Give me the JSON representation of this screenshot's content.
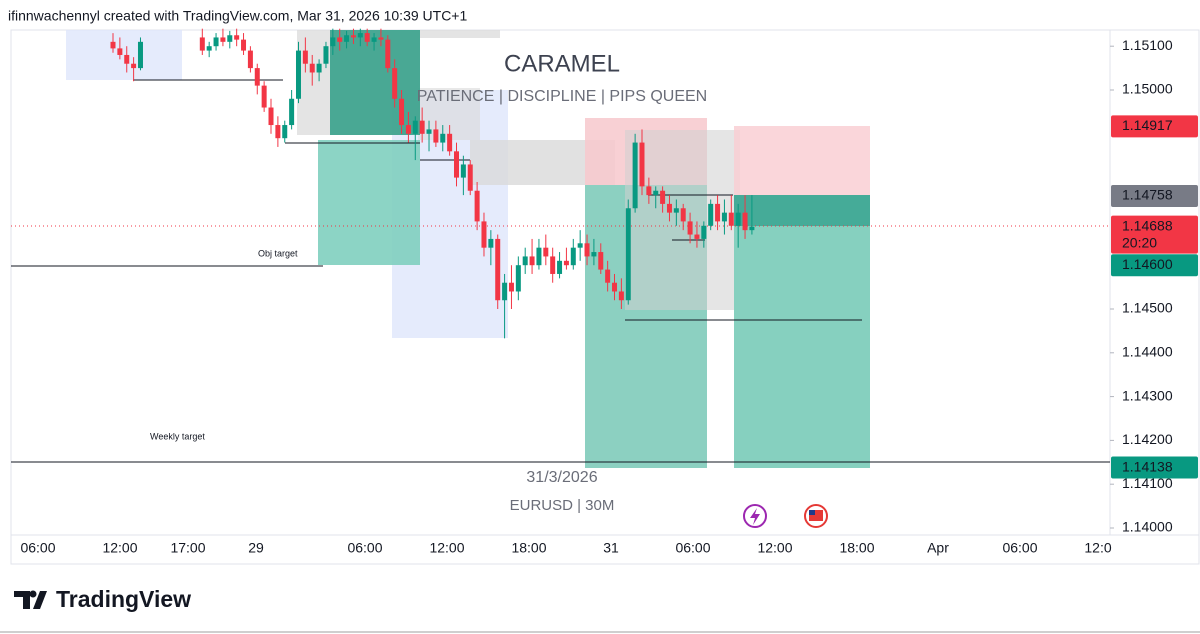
{
  "header": {
    "text": "ifinnwachennyl created with TradingView.com, Mar 31, 2026 10:39 UTC+1"
  },
  "chart": {
    "watermark": {
      "title": "CARAMEL",
      "subtitle": "PATIENCE | DISCIPLINE | PIPS QUEEN",
      "date": "31/3/2026",
      "symbol": "EURUSD | 30M"
    },
    "annotations": [
      "Obj target",
      "Weekly target"
    ],
    "up_color": "#089981",
    "down_color": "#f23645",
    "ylim": [
      1.13984,
      1.15137
    ],
    "yticks": [
      {
        "value": 1.151,
        "label": "1.15100"
      },
      {
        "value": 1.15,
        "label": "1.15000"
      },
      {
        "value": 1.145,
        "label": "1.14500"
      },
      {
        "value": 1.144,
        "label": "1.14400"
      },
      {
        "value": 1.143,
        "label": "1.14300"
      },
      {
        "value": 1.142,
        "label": "1.14200"
      },
      {
        "value": 1.141,
        "label": "1.14100"
      },
      {
        "value": 1.14,
        "label": "1.14000"
      }
    ],
    "price_labels": [
      {
        "value": 1.14917,
        "label": "1.14917",
        "color": "#f23645"
      },
      {
        "value": 1.14758,
        "label": "1.14758",
        "color": "#787b86"
      },
      {
        "value": 1.14688,
        "label": "1.14688",
        "color": "#f23645"
      },
      {
        "value": 1.146,
        "label": "1.14600",
        "color": "#089981"
      },
      {
        "value": 1.14138,
        "label": "1.14138",
        "color": "#089981"
      }
    ],
    "countdown": "20:20",
    "x_labels": [
      "06:00",
      "12:00",
      "17:00",
      "29",
      "06:00",
      "12:00",
      "18:00",
      "31",
      "06:00",
      "12:00",
      "18:00",
      "Apr",
      "06:00",
      "12:0"
    ],
    "candles": [
      [
        1.1511,
        1.1513,
        1.15085,
        1.15095
      ],
      [
        1.15095,
        1.1512,
        1.1507,
        1.1508
      ],
      [
        1.1508,
        1.151,
        1.1504,
        1.1506
      ],
      [
        1.1506,
        1.15075,
        1.1502,
        1.1505
      ],
      [
        1.1505,
        1.1512,
        1.15045,
        1.1511
      ],
      null,
      null,
      null,
      null,
      null,
      null,
      null,
      null,
      [
        1.1512,
        1.1514,
        1.1508,
        1.1509
      ],
      [
        1.1509,
        1.1511,
        1.15075,
        1.151
      ],
      [
        1.151,
        1.1513,
        1.1509,
        1.1512
      ],
      [
        1.1512,
        1.1514,
        1.151,
        1.1511
      ],
      [
        1.1511,
        1.15135,
        1.15095,
        1.15125
      ],
      [
        1.15125,
        1.1514,
        1.151,
        1.15115
      ],
      [
        1.15115,
        1.1513,
        1.1508,
        1.1509
      ],
      [
        1.1509,
        1.151,
        1.1504,
        1.1505
      ],
      [
        1.1505,
        1.1506,
        1.1499,
        1.1501
      ],
      [
        1.1501,
        1.1502,
        1.1495,
        1.1496
      ],
      [
        1.1496,
        1.1498,
        1.149,
        1.1492
      ],
      [
        1.1492,
        1.1494,
        1.1487,
        1.1489
      ],
      [
        1.1489,
        1.1493,
        1.1488,
        1.1492
      ],
      [
        1.1492,
        1.15,
        1.1491,
        1.1498
      ],
      [
        1.1498,
        1.1511,
        1.1497,
        1.1509
      ],
      [
        1.1509,
        1.1512,
        1.1504,
        1.1506
      ],
      [
        1.1506,
        1.1508,
        1.1501,
        1.1504
      ],
      [
        1.1504,
        1.1507,
        1.1502,
        1.1506
      ],
      [
        1.1506,
        1.1511,
        1.1505,
        1.151
      ],
      [
        1.151,
        1.1514,
        1.1508,
        1.1512
      ],
      [
        1.1512,
        1.1514,
        1.1509,
        1.1511
      ],
      [
        1.1511,
        1.15135,
        1.15095,
        1.15125
      ],
      [
        1.15125,
        1.1514,
        1.15105,
        1.1512
      ],
      [
        1.1512,
        1.1514,
        1.151,
        1.1513
      ],
      [
        1.1513,
        1.1514,
        1.151,
        1.1511
      ],
      [
        1.1511,
        1.1513,
        1.1509,
        1.1512
      ],
      [
        1.1512,
        1.1514,
        1.151,
        1.15115
      ],
      [
        1.15115,
        1.15125,
        1.1504,
        1.1505
      ],
      [
        1.1505,
        1.1507,
        1.1496,
        1.1498
      ],
      [
        1.1498,
        1.15,
        1.149,
        1.1492
      ],
      [
        1.1492,
        1.1495,
        1.1488,
        1.149
      ],
      [
        1.149,
        1.1494,
        1.1484,
        1.1493
      ],
      [
        1.1493,
        1.1496,
        1.1488,
        1.149
      ],
      [
        1.149,
        1.1493,
        1.1486,
        1.1491
      ],
      [
        1.1491,
        1.1493,
        1.1487,
        1.1488
      ],
      [
        1.1488,
        1.1492,
        1.1486,
        1.149
      ],
      [
        1.149,
        1.1492,
        1.1485,
        1.1486
      ],
      [
        1.1486,
        1.1488,
        1.1478,
        1.148
      ],
      [
        1.148,
        1.1485,
        1.1476,
        1.1483
      ],
      [
        1.1483,
        1.1484,
        1.1476,
        1.1477
      ],
      [
        1.1477,
        1.1479,
        1.1468,
        1.147
      ],
      [
        1.147,
        1.1472,
        1.1462,
        1.1464
      ],
      [
        1.1464,
        1.1468,
        1.146,
        1.1466
      ],
      [
        1.1466,
        1.1467,
        1.145,
        1.1452
      ],
      [
        1.1452,
        1.1458,
        1.14433,
        1.1456
      ],
      [
        1.1456,
        1.146,
        1.145,
        1.1454
      ],
      [
        1.1454,
        1.1462,
        1.1452,
        1.146
      ],
      [
        1.146,
        1.1464,
        1.1458,
        1.1462
      ],
      [
        1.1462,
        1.1466,
        1.1458,
        1.146
      ],
      [
        1.146,
        1.1466,
        1.1459,
        1.1464
      ],
      [
        1.1464,
        1.1467,
        1.146,
        1.1462
      ],
      [
        1.1462,
        1.1464,
        1.1456,
        1.1458
      ],
      [
        1.1458,
        1.1463,
        1.1457,
        1.1461
      ],
      [
        1.1461,
        1.1464,
        1.1459,
        1.146
      ],
      [
        1.146,
        1.1466,
        1.1459,
        1.1464
      ],
      [
        1.1464,
        1.1468,
        1.1461,
        1.1465
      ],
      [
        1.1465,
        1.1467,
        1.146,
        1.1462
      ],
      [
        1.1462,
        1.1466,
        1.146,
        1.1463
      ],
      [
        1.1463,
        1.1465,
        1.1458,
        1.1459
      ],
      [
        1.1459,
        1.1461,
        1.1454,
        1.1456
      ],
      [
        1.1456,
        1.1458,
        1.1452,
        1.1454
      ],
      [
        1.1454,
        1.1457,
        1.145,
        1.1452
      ],
      [
        1.1452,
        1.1475,
        1.1451,
        1.1473
      ],
      [
        1.1473,
        1.149,
        1.1472,
        1.1488
      ],
      [
        1.1488,
        1.1491,
        1.1476,
        1.1478
      ],
      [
        1.1478,
        1.148,
        1.1474,
        1.1476
      ],
      [
        1.1476,
        1.1478,
        1.1473,
        1.1477
      ],
      [
        1.1477,
        1.1478,
        1.1472,
        1.1474
      ],
      [
        1.1474,
        1.1476,
        1.147,
        1.1472
      ],
      [
        1.1472,
        1.1475,
        1.1469,
        1.1473
      ],
      [
        1.1473,
        1.1474,
        1.1468,
        1.147
      ],
      [
        1.147,
        1.1472,
        1.1465,
        1.1467
      ],
      [
        1.1467,
        1.147,
        1.1464,
        1.1466
      ],
      [
        1.1466,
        1.147,
        1.1464,
        1.1469
      ],
      [
        1.1469,
        1.1475,
        1.1468,
        1.1474
      ],
      [
        1.1474,
        1.1476,
        1.1468,
        1.147
      ],
      [
        1.147,
        1.1475,
        1.1467,
        1.1472
      ],
      [
        1.1472,
        1.1476,
        1.1468,
        1.1469
      ],
      [
        1.1469,
        1.1474,
        1.1464,
        1.1472
      ],
      [
        1.1472,
        1.1476,
        1.1466,
        1.1468
      ],
      [
        1.1468,
        1.1476,
        1.1467,
        1.14688
      ]
    ]
  },
  "footer": {
    "brand": "TradingView"
  }
}
